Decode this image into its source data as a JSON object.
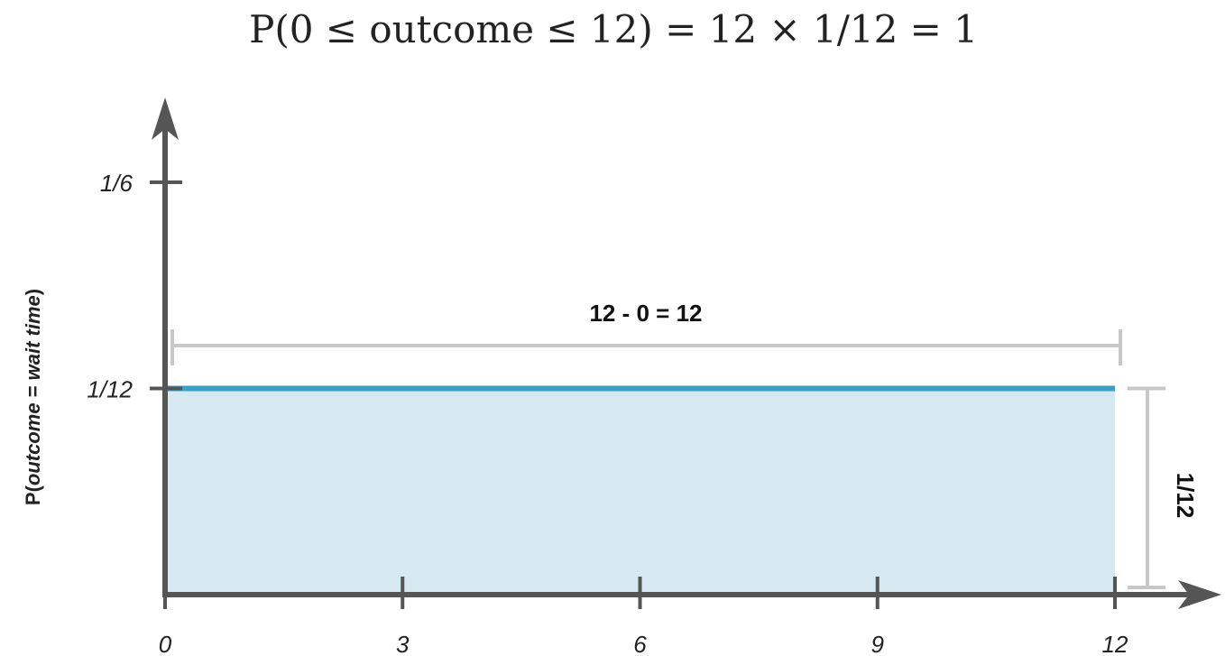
{
  "chart_data": {
    "type": "area",
    "title": "P(0 ≤ outcome ≤ 12) = 12 × 1/12 = 1",
    "ylabel": {
      "prefix": "P(",
      "italic": "outcome",
      "middle": " = ",
      "italic2": "wait time",
      "suffix": ")"
    },
    "xlabel": "",
    "x_ticks": [
      "0",
      "3",
      "6",
      "9",
      "12"
    ],
    "x_tick_values": [
      0,
      3,
      6,
      9,
      12
    ],
    "y_ticks": [
      "1/6",
      "1/12"
    ],
    "y_tick_values": [
      0.16667,
      0.08333
    ],
    "xlim": [
      0,
      12
    ],
    "ylim": [
      0,
      0.16667
    ],
    "series": [
      {
        "x": [
          0,
          12
        ],
        "y": [
          0.08333,
          0.08333
        ]
      }
    ],
    "width_annotation": "12 - 0  = 12",
    "height_annotation": "1/12",
    "colors": {
      "line": "#3ca0c6",
      "fill": "#d6e9f1",
      "axis": "#555555",
      "bracket": "#c8c8c8"
    }
  }
}
